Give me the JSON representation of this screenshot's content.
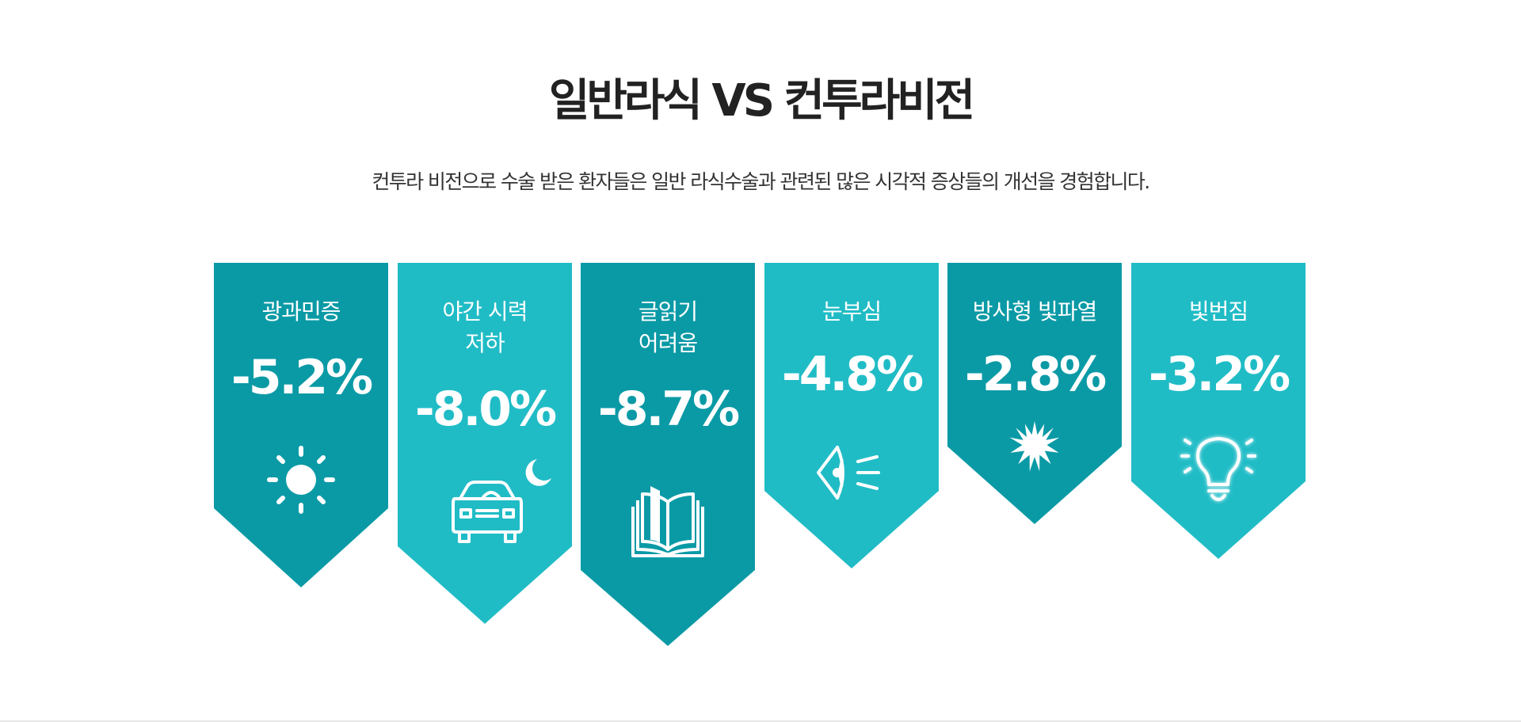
{
  "title": "일반라식 VS 컨투라비전",
  "subtitle": "컨투라 비전으로 수술 받은 환자들은 일반 라식수술과 관련된 많은 시각적 증상들의 개선을 경험합니다.",
  "colors": {
    "dark_teal": "#0a9aa6",
    "light_teal": "#20bcc6",
    "text": "#222222"
  },
  "cards": [
    {
      "label": "광과민증",
      "value": "-5.2%",
      "icon": "sun-icon",
      "color": "#0a9aa6"
    },
    {
      "label": "야간 시력\n저하",
      "value": "-8.0%",
      "icon": "car-moon-icon",
      "color": "#20bcc6"
    },
    {
      "label": "글읽기\n어려움",
      "value": "-8.7%",
      "icon": "book-icon",
      "color": "#0a9aa6"
    },
    {
      "label": "눈부심",
      "value": "-4.8%",
      "icon": "eye-glare-icon",
      "color": "#20bcc6"
    },
    {
      "label": "방사형 빛파열",
      "value": "-2.8%",
      "icon": "starburst-icon",
      "color": "#0a9aa6"
    },
    {
      "label": "빛번짐",
      "value": "-3.2%",
      "icon": "lightbulb-icon",
      "color": "#20bcc6"
    }
  ]
}
